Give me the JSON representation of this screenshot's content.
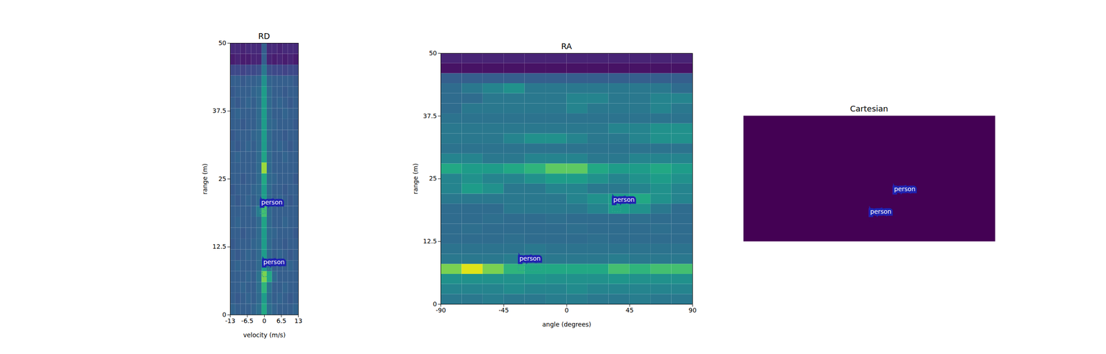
{
  "chart_data": [
    {
      "type": "heatmap",
      "title": "RD",
      "x_label": "velocity (m/s)",
      "y_label": "range (m)",
      "xlim": [
        -13,
        13
      ],
      "xticks": [
        -13,
        -6.5,
        0,
        6.5,
        13
      ],
      "ylim": [
        0,
        50
      ],
      "yticks": [
        0,
        12.5,
        25,
        37.5,
        50
      ],
      "x_edges": [
        -13,
        -11,
        -9,
        -7,
        -5,
        -3,
        -1,
        1,
        3,
        5,
        7,
        9,
        11,
        13
      ],
      "y_edges": [
        0,
        2,
        4,
        6,
        8,
        10,
        12,
        14,
        16,
        18,
        20,
        22,
        24,
        26,
        28,
        30,
        32,
        34,
        36,
        38,
        40,
        42,
        44,
        46,
        48,
        50
      ],
      "zlim": [
        0,
        1
      ],
      "cells": [
        [
          0.32,
          0.3,
          0.3,
          0.3,
          0.32,
          0.36,
          0.6,
          0.36,
          0.32,
          0.3,
          0.3,
          0.3,
          0.32
        ],
        [
          0.3,
          0.28,
          0.3,
          0.32,
          0.3,
          0.34,
          0.55,
          0.34,
          0.3,
          0.32,
          0.3,
          0.28,
          0.3
        ],
        [
          0.3,
          0.3,
          0.32,
          0.3,
          0.3,
          0.36,
          0.65,
          0.38,
          0.3,
          0.3,
          0.32,
          0.3,
          0.3
        ],
        [
          0.3,
          0.3,
          0.3,
          0.32,
          0.3,
          0.38,
          0.8,
          0.6,
          0.34,
          0.3,
          0.3,
          0.3,
          0.3
        ],
        [
          0.3,
          0.32,
          0.3,
          0.3,
          0.3,
          0.34,
          0.55,
          0.36,
          0.3,
          0.3,
          0.3,
          0.32,
          0.3
        ],
        [
          0.3,
          0.28,
          0.3,
          0.32,
          0.3,
          0.34,
          0.55,
          0.34,
          0.3,
          0.32,
          0.3,
          0.28,
          0.3
        ],
        [
          0.28,
          0.3,
          0.3,
          0.3,
          0.32,
          0.34,
          0.55,
          0.34,
          0.3,
          0.3,
          0.28,
          0.3,
          0.3
        ],
        [
          0.3,
          0.3,
          0.28,
          0.3,
          0.3,
          0.34,
          0.55,
          0.34,
          0.32,
          0.3,
          0.3,
          0.3,
          0.28
        ],
        [
          0.3,
          0.32,
          0.3,
          0.3,
          0.3,
          0.34,
          0.58,
          0.34,
          0.3,
          0.3,
          0.32,
          0.3,
          0.3
        ],
        [
          0.3,
          0.3,
          0.3,
          0.3,
          0.32,
          0.42,
          0.7,
          0.34,
          0.3,
          0.3,
          0.3,
          0.3,
          0.3
        ],
        [
          0.3,
          0.28,
          0.3,
          0.32,
          0.3,
          0.34,
          0.55,
          0.34,
          0.3,
          0.32,
          0.3,
          0.28,
          0.3
        ],
        [
          0.28,
          0.3,
          0.3,
          0.3,
          0.32,
          0.34,
          0.55,
          0.34,
          0.3,
          0.3,
          0.28,
          0.3,
          0.3
        ],
        [
          0.3,
          0.3,
          0.28,
          0.3,
          0.3,
          0.34,
          0.6,
          0.34,
          0.32,
          0.3,
          0.3,
          0.3,
          0.28
        ],
        [
          0.3,
          0.3,
          0.3,
          0.3,
          0.3,
          0.34,
          0.85,
          0.34,
          0.3,
          0.3,
          0.3,
          0.3,
          0.3
        ],
        [
          0.3,
          0.32,
          0.3,
          0.3,
          0.3,
          0.34,
          0.58,
          0.34,
          0.3,
          0.3,
          0.32,
          0.3,
          0.3
        ],
        [
          0.3,
          0.28,
          0.3,
          0.32,
          0.3,
          0.34,
          0.55,
          0.34,
          0.3,
          0.32,
          0.3,
          0.28,
          0.3
        ],
        [
          0.28,
          0.3,
          0.3,
          0.3,
          0.32,
          0.34,
          0.55,
          0.34,
          0.3,
          0.3,
          0.28,
          0.3,
          0.3
        ],
        [
          0.3,
          0.3,
          0.28,
          0.3,
          0.3,
          0.34,
          0.55,
          0.34,
          0.32,
          0.3,
          0.3,
          0.3,
          0.28
        ],
        [
          0.3,
          0.32,
          0.3,
          0.3,
          0.3,
          0.34,
          0.55,
          0.34,
          0.3,
          0.3,
          0.32,
          0.3,
          0.3
        ],
        [
          0.3,
          0.28,
          0.3,
          0.32,
          0.3,
          0.34,
          0.55,
          0.34,
          0.3,
          0.32,
          0.3,
          0.28,
          0.3
        ],
        [
          0.28,
          0.3,
          0.3,
          0.3,
          0.32,
          0.34,
          0.55,
          0.34,
          0.3,
          0.3,
          0.28,
          0.3,
          0.3
        ],
        [
          0.3,
          0.3,
          0.28,
          0.3,
          0.3,
          0.32,
          0.5,
          0.32,
          0.3,
          0.3,
          0.3,
          0.3,
          0.28
        ],
        [
          0.22,
          0.22,
          0.2,
          0.22,
          0.22,
          0.24,
          0.4,
          0.24,
          0.22,
          0.22,
          0.2,
          0.22,
          0.22
        ],
        [
          0.08,
          0.1,
          0.08,
          0.08,
          0.1,
          0.1,
          0.3,
          0.1,
          0.08,
          0.1,
          0.08,
          0.1,
          0.08
        ],
        [
          0.12,
          0.12,
          0.1,
          0.12,
          0.12,
          0.12,
          0.3,
          0.12,
          0.12,
          0.1,
          0.12,
          0.12,
          0.12
        ]
      ],
      "detections": [
        {
          "label": "person",
          "x1": -1.5,
          "x2": 0.4,
          "y1": 18.6,
          "y2": 19.4
        },
        {
          "label": "person",
          "x1": -0.7,
          "x2": 2.8,
          "y1": 7.0,
          "y2": 8.4
        }
      ]
    },
    {
      "type": "heatmap",
      "title": "RA",
      "x_label": "angle (degrees)",
      "y_label": "range (m)",
      "xlim": [
        -90,
        90
      ],
      "xticks": [
        -90,
        -45,
        0,
        45,
        90
      ],
      "ylim": [
        0,
        50
      ],
      "yticks": [
        0,
        12.5,
        25,
        37.5,
        50
      ],
      "x_edges": [
        -90,
        -75,
        -60,
        -45,
        -30,
        -15,
        0,
        15,
        30,
        45,
        60,
        75,
        90
      ],
      "y_edges": [
        0,
        2,
        4,
        6,
        8,
        10,
        12,
        14,
        16,
        18,
        20,
        22,
        24,
        26,
        28,
        30,
        32,
        34,
        36,
        38,
        40,
        42,
        44,
        46,
        48,
        50
      ],
      "zlim": [
        0,
        1
      ],
      "cells": [
        [
          0.4,
          0.4,
          0.42,
          0.4,
          0.4,
          0.42,
          0.42,
          0.4,
          0.4,
          0.42,
          0.4,
          0.4
        ],
        [
          0.45,
          0.45,
          0.45,
          0.48,
          0.45,
          0.45,
          0.48,
          0.45,
          0.45,
          0.45,
          0.45,
          0.45
        ],
        [
          0.5,
          0.5,
          0.5,
          0.5,
          0.52,
          0.5,
          0.5,
          0.5,
          0.52,
          0.5,
          0.5,
          0.5
        ],
        [
          0.8,
          0.95,
          0.8,
          0.65,
          0.6,
          0.6,
          0.6,
          0.6,
          0.7,
          0.65,
          0.7,
          0.7
        ],
        [
          0.4,
          0.4,
          0.4,
          0.42,
          0.4,
          0.4,
          0.4,
          0.4,
          0.42,
          0.4,
          0.4,
          0.4
        ],
        [
          0.38,
          0.38,
          0.38,
          0.38,
          0.4,
          0.38,
          0.38,
          0.38,
          0.38,
          0.38,
          0.38,
          0.38
        ],
        [
          0.35,
          0.35,
          0.35,
          0.36,
          0.35,
          0.35,
          0.35,
          0.36,
          0.35,
          0.35,
          0.35,
          0.35
        ],
        [
          0.35,
          0.36,
          0.35,
          0.35,
          0.35,
          0.35,
          0.36,
          0.35,
          0.35,
          0.35,
          0.36,
          0.35
        ],
        [
          0.35,
          0.35,
          0.36,
          0.35,
          0.35,
          0.36,
          0.35,
          0.35,
          0.35,
          0.36,
          0.35,
          0.35
        ],
        [
          0.35,
          0.35,
          0.35,
          0.4,
          0.4,
          0.4,
          0.4,
          0.45,
          0.55,
          0.5,
          0.4,
          0.35
        ],
        [
          0.4,
          0.4,
          0.4,
          0.4,
          0.4,
          0.4,
          0.45,
          0.5,
          0.55,
          0.6,
          0.5,
          0.45
        ],
        [
          0.45,
          0.55,
          0.5,
          0.4,
          0.4,
          0.45,
          0.45,
          0.4,
          0.4,
          0.45,
          0.5,
          0.45
        ],
        [
          0.45,
          0.5,
          0.45,
          0.45,
          0.5,
          0.55,
          0.55,
          0.5,
          0.45,
          0.5,
          0.55,
          0.5
        ],
        [
          0.6,
          0.55,
          0.55,
          0.6,
          0.65,
          0.75,
          0.75,
          0.6,
          0.55,
          0.55,
          0.6,
          0.55
        ],
        [
          0.45,
          0.45,
          0.4,
          0.4,
          0.45,
          0.45,
          0.45,
          0.4,
          0.4,
          0.45,
          0.45,
          0.45
        ],
        [
          0.38,
          0.38,
          0.38,
          0.38,
          0.38,
          0.38,
          0.38,
          0.38,
          0.38,
          0.38,
          0.38,
          0.38
        ],
        [
          0.4,
          0.4,
          0.4,
          0.45,
          0.5,
          0.5,
          0.45,
          0.4,
          0.4,
          0.45,
          0.5,
          0.5
        ],
        [
          0.4,
          0.4,
          0.4,
          0.4,
          0.4,
          0.4,
          0.4,
          0.4,
          0.45,
          0.45,
          0.5,
          0.5
        ],
        [
          0.38,
          0.38,
          0.38,
          0.38,
          0.38,
          0.38,
          0.38,
          0.38,
          0.38,
          0.38,
          0.38,
          0.38
        ],
        [
          0.35,
          0.4,
          0.4,
          0.4,
          0.4,
          0.4,
          0.45,
          0.4,
          0.4,
          0.4,
          0.45,
          0.4
        ],
        [
          0.35,
          0.35,
          0.4,
          0.4,
          0.4,
          0.4,
          0.45,
          0.45,
          0.4,
          0.4,
          0.45,
          0.45
        ],
        [
          0.35,
          0.4,
          0.45,
          0.5,
          0.4,
          0.4,
          0.4,
          0.4,
          0.4,
          0.4,
          0.4,
          0.35
        ],
        [
          0.3,
          0.3,
          0.3,
          0.3,
          0.3,
          0.3,
          0.3,
          0.3,
          0.3,
          0.3,
          0.3,
          0.3
        ],
        [
          0.05,
          0.05,
          0.05,
          0.05,
          0.05,
          0.05,
          0.05,
          0.05,
          0.05,
          0.05,
          0.05,
          0.05
        ],
        [
          0.1,
          0.1,
          0.1,
          0.1,
          0.1,
          0.1,
          0.1,
          0.1,
          0.1,
          0.1,
          0.1,
          0.1
        ]
      ],
      "detections": [
        {
          "label": "person",
          "x1": 32.7,
          "x2": 38.8,
          "y1": 18.4,
          "y2": 19.4
        },
        {
          "label": "person",
          "x1": -34.5,
          "x2": -17.8,
          "y1": 6.7,
          "y2": 7.7
        }
      ]
    },
    {
      "type": "scatter",
      "title": "Cartesian",
      "tick_labels": false,
      "xlim": [
        -50,
        50
      ],
      "ylim": [
        0,
        50
      ],
      "color": "#440154",
      "detections": [
        {
          "label": "person",
          "x1": 9.5,
          "x2": 11.5,
          "y1": 17.0,
          "y2": 18.0
        },
        {
          "label": "person",
          "x1": 0.0,
          "x2": 2.0,
          "y1": 8.0,
          "y2": 9.0
        }
      ]
    }
  ]
}
